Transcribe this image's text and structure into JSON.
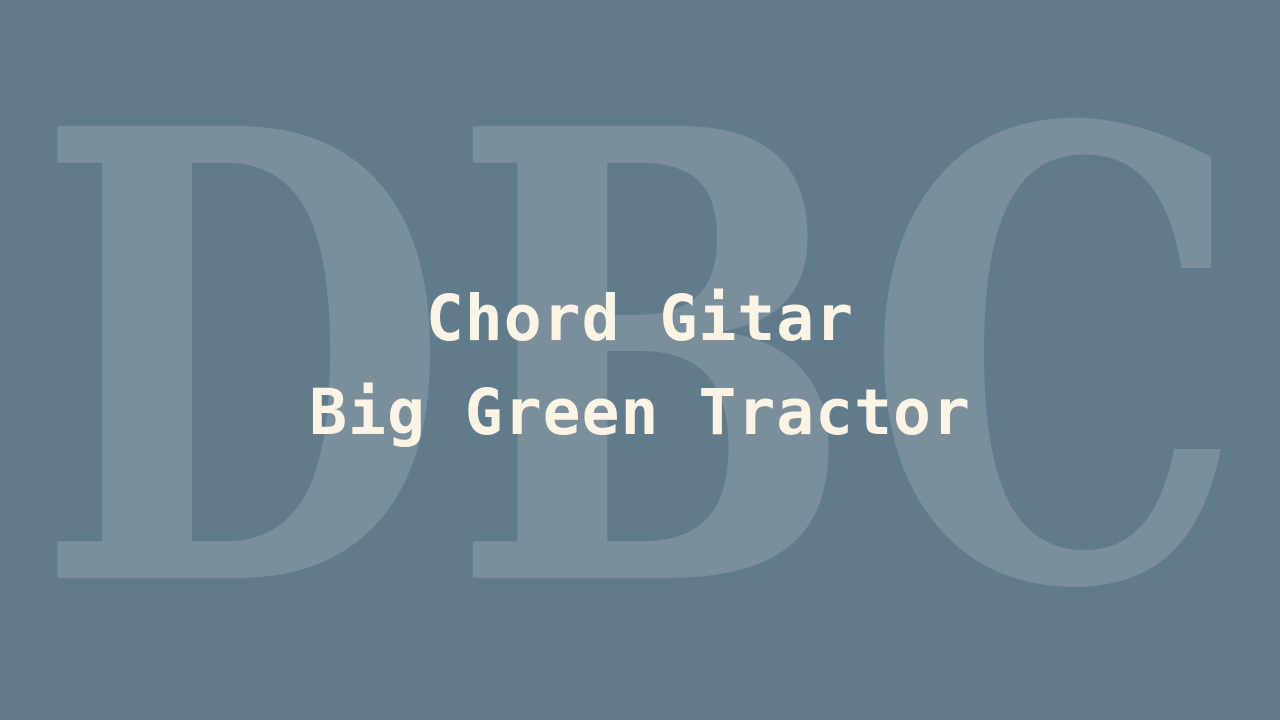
{
  "colors": {
    "background": "#5f7b8c",
    "watermark": "#7a8e9b",
    "title_text": "#fbf3e4"
  },
  "watermark": {
    "text": "DBC"
  },
  "title": {
    "line1": "Chord Gitar",
    "line2": "Big Green Tractor"
  }
}
